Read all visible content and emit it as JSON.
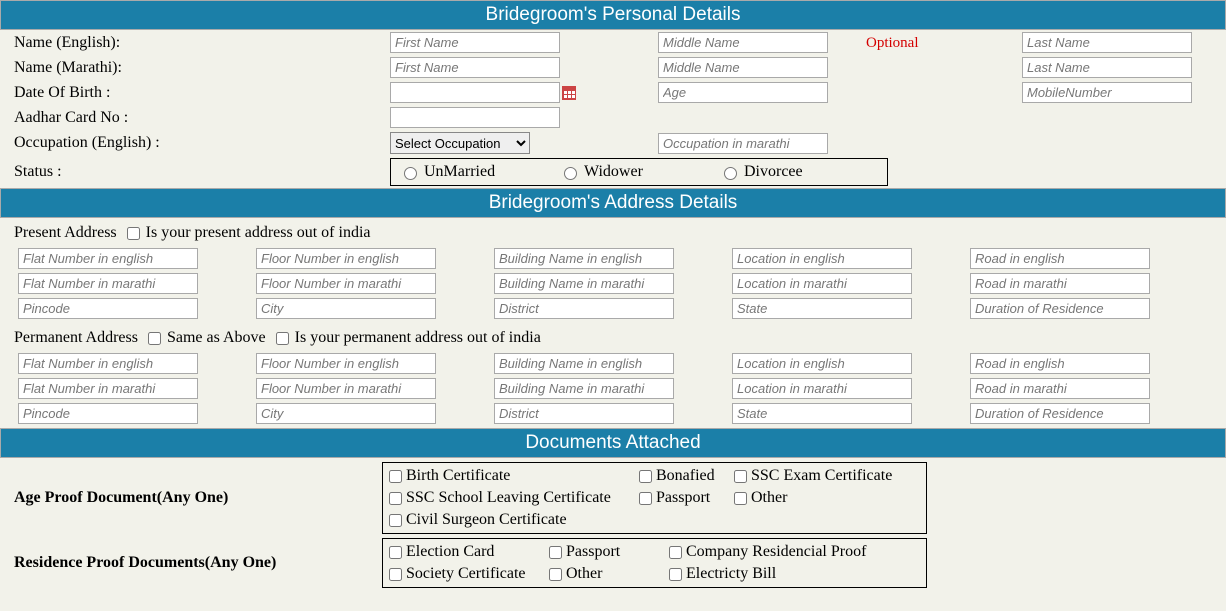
{
  "sections": {
    "personal": "Bridegroom's Personal Details",
    "address": "Bridegroom's Address Details",
    "documents": "Documents Attached"
  },
  "labels": {
    "name_en": "Name (English):",
    "name_mr": "Name (Marathi):",
    "dob": "Date Of Birth :",
    "aadhar": "Aadhar Card No :",
    "occupation": "Occupation (English) :",
    "status": "Status :",
    "present_addr": "Present Address",
    "present_out": " Is your present address out of india",
    "perm_addr": "Permanent Address",
    "same_as_above": " Same as Above",
    "perm_out": " Is your permanent address out of india",
    "optional": "Optional",
    "age_proof": "Age Proof Document(Any One)",
    "res_proof": "Residence Proof Documents(Any One)"
  },
  "placeholders": {
    "first": "First Name",
    "middle": "Middle Name",
    "last": "Last Name",
    "age": "Age",
    "mobile": "MobileNumber",
    "occ_mr": "Occupation in marathi",
    "flat_en": "Flat Number in english",
    "flat_mr": "Flat Number in marathi",
    "floor_en": "Floor Number in english",
    "floor_mr": "Floor Number in marathi",
    "bldg_en": "Building Name in english",
    "bldg_mr": "Building Name in marathi",
    "loc_en": "Location in english",
    "loc_mr": "Location in marathi",
    "road_en": "Road in english",
    "road_mr": "Road in marathi",
    "pincode": "Pincode",
    "city": "City",
    "district": "District",
    "state": "State",
    "duration": "Duration of Residence"
  },
  "select": {
    "occupation": "Select Occupation"
  },
  "status_opts": {
    "unmarried": "UnMarried",
    "widower": "Widower",
    "divorcee": "Divorcee"
  },
  "age_docs": {
    "birth": "Birth Certificate",
    "bona": "Bonafied",
    "ssc_exam": "SSC Exam Certificate",
    "ssc_leave": "SSC School Leaving Certificate",
    "passport": "Passport",
    "other": "Other",
    "civil": "Civil Surgeon Certificate"
  },
  "res_docs": {
    "election": "Election Card",
    "passport": "Passport",
    "company": "Company Residencial Proof",
    "society": "Society Certificate",
    "other": "Other",
    "electricity": "Electricty Bill"
  }
}
